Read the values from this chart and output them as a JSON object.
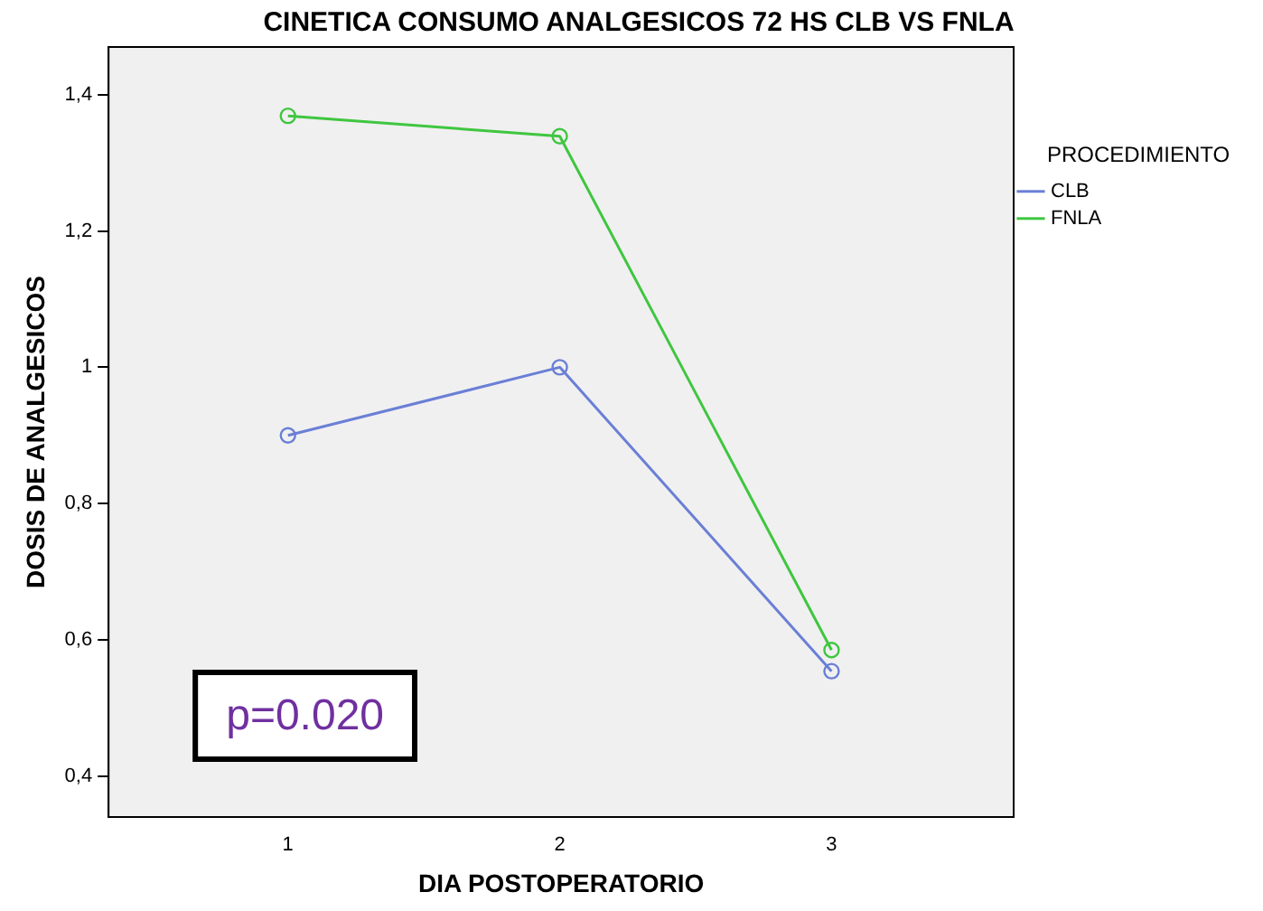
{
  "chart_data": {
    "type": "line",
    "title": "CINETICA CONSUMO ANALGESICOS 72 HS CLB VS FNLA",
    "xlabel": "DIA POSTOPERATORIO",
    "ylabel": "DOSIS DE ANALGESICOS",
    "legend_title": "PROCEDIMIENTO",
    "legend": "right",
    "marker": "circle",
    "line_style": "solid",
    "grid": false,
    "x": [
      1,
      2,
      3
    ],
    "xlim": [
      0.34,
      3.67
    ],
    "xticks": [
      1,
      2,
      3
    ],
    "ylim": [
      0.34,
      1.47
    ],
    "yticks": [
      {
        "value": 0.4,
        "label": "0,4"
      },
      {
        "value": 0.6,
        "label": "0,6"
      },
      {
        "value": 0.8,
        "label": "0,8"
      },
      {
        "value": 1,
        "label": "1"
      },
      {
        "value": 1.2,
        "label": "1,2"
      },
      {
        "value": 1.4,
        "label": "1,4"
      }
    ],
    "series": [
      {
        "name": "CLB",
        "color": "#6a7fd6",
        "values": [
          0.9,
          1.0,
          0.554
        ]
      },
      {
        "name": "FNLA",
        "color": "#3fc63f",
        "values": [
          1.369,
          1.339,
          0.585
        ]
      }
    ],
    "annotations": [
      "p=0.020"
    ]
  }
}
